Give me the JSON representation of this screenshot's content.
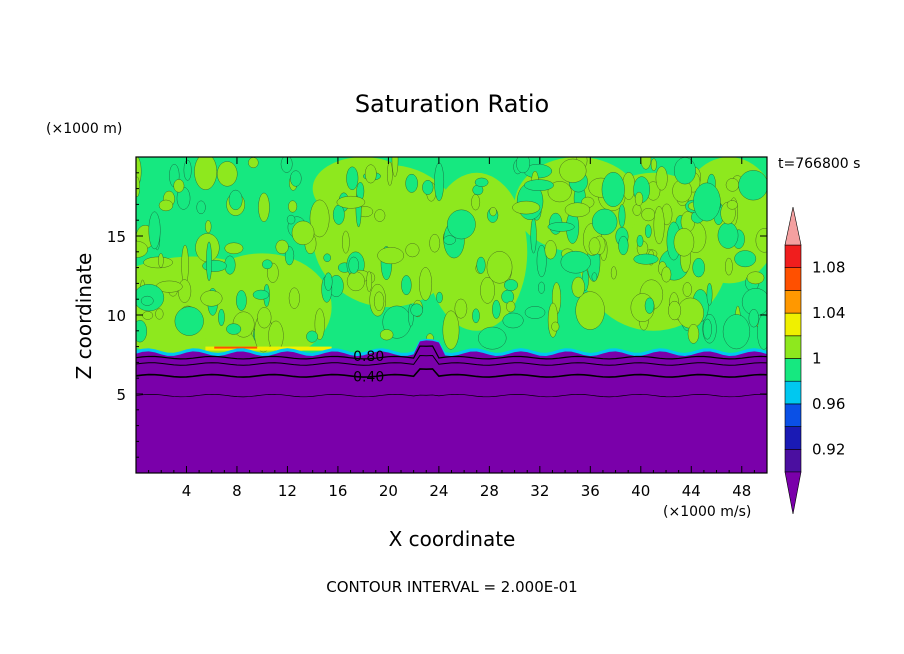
{
  "chart_data": {
    "type": "heatmap",
    "title": "Saturation Ratio",
    "time_label": "t=766800 s",
    "xlabel": "X coordinate",
    "ylabel": "Z coordinate",
    "x_units": "(×1000 m/s)",
    "y_units": "(×1000 m)",
    "xlim": [
      0,
      50
    ],
    "ylim": [
      0,
      20
    ],
    "x_ticks": [
      4,
      8,
      12,
      16,
      20,
      24,
      28,
      32,
      36,
      40,
      44,
      48
    ],
    "y_ticks": [
      5,
      10,
      15
    ],
    "contour_interval_text": "CONTOUR INTERVAL = 2.000E-01",
    "contour_labels": [
      {
        "text": "0.80",
        "x": 17.2,
        "y": 7.4
      },
      {
        "text": "0.40",
        "x": 17.2,
        "y": 6.1
      }
    ],
    "colorbar": {
      "levels": [
        0.9,
        0.92,
        0.94,
        0.96,
        0.98,
        1.0,
        1.02,
        1.04,
        1.06,
        1.08,
        1.1
      ],
      "tick_labels": [
        "0.92",
        "0.96",
        "1",
        "1.04",
        "1.08"
      ],
      "colors": [
        "#4b0fa0",
        "#1a1ab4",
        "#0a50e6",
        "#00c8f0",
        "#16e880",
        "#8ee81e",
        "#f0f000",
        "#ff9800",
        "#ff5000",
        "#f01e1e"
      ],
      "under_color": "#7a00aa",
      "over_color": "#f4a0a0"
    },
    "regions": {
      "dry_layer_top": 7.6,
      "upper_field_fraction_green_yellow": 0.55
    }
  }
}
